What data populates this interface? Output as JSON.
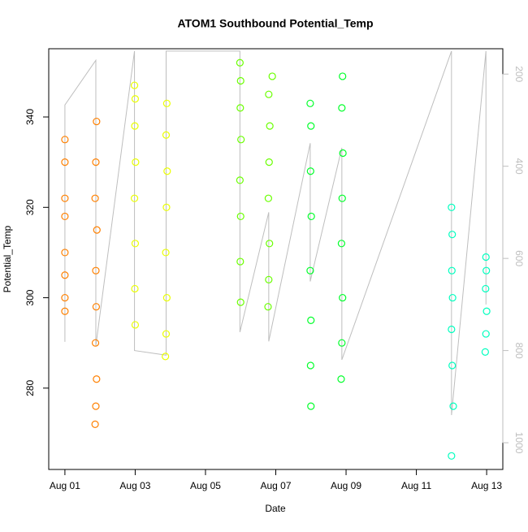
{
  "chart_data": {
    "type": "scatter",
    "title": "ATOM1 Southbound Potential_Temp",
    "x_label": "Date",
    "y_label": "Potential_Temp",
    "xlim": [
      0.54,
      13.46
    ],
    "ylim": [
      262,
      355.1
    ],
    "y2lim": [
      1058,
      145
    ],
    "xticks": [
      {
        "value": 1,
        "label": "Aug 01"
      },
      {
        "value": 3,
        "label": "Aug 03"
      },
      {
        "value": 5,
        "label": "Aug 05"
      },
      {
        "value": 7,
        "label": "Aug 07"
      },
      {
        "value": 9,
        "label": "Aug 09"
      },
      {
        "value": 11,
        "label": "Aug 11"
      },
      {
        "value": 13,
        "label": "Aug 13"
      }
    ],
    "yticks": [
      280,
      300,
      320,
      340
    ],
    "y2ticks": [
      200,
      400,
      600,
      800,
      1000
    ],
    "y2_color": "#bebebe",
    "series": [
      {
        "color": "#ff8000",
        "x": [
          1,
          1,
          1,
          1,
          1,
          1,
          1,
          1,
          1.86,
          1.88,
          1.9,
          1.87,
          1.89,
          1.88,
          1.91,
          1.86,
          1.88,
          1.9
        ],
        "values": [
          335,
          330,
          322,
          318,
          310,
          305,
          300,
          297,
          272,
          276,
          282,
          290,
          298,
          306,
          315,
          322,
          330,
          339
        ]
      },
      {
        "color": "#eaff00",
        "x": [
          2.98,
          3.0,
          2.99,
          3.01,
          2.98,
          3.0,
          2.99,
          3.0,
          3.86,
          3.88,
          3.9,
          3.87,
          3.89,
          3.91,
          3.88,
          3.9
        ],
        "values": [
          347,
          344,
          338,
          330,
          322,
          312,
          302,
          294,
          287,
          292,
          300,
          310,
          320,
          328,
          336,
          343
        ]
      },
      {
        "color": "#6aff00",
        "x": [
          5.98,
          6.0,
          5.99,
          6.01,
          5.98,
          6.0,
          5.99,
          6.0,
          6.78,
          6.8,
          6.82,
          6.79,
          6.81,
          6.83,
          6.8,
          6.9
        ],
        "values": [
          352,
          348,
          342,
          335,
          326,
          318,
          308,
          299,
          298,
          304,
          312,
          322,
          330,
          338,
          345,
          349
        ]
      },
      {
        "color": "#00ff2a",
        "x": [
          7.98,
          8.0,
          7.99,
          8.01,
          7.98,
          8.0,
          7.99,
          8.0,
          8.86,
          8.88,
          8.9,
          8.87,
          8.89,
          8.91,
          8.88,
          8.9
        ],
        "values": [
          343,
          338,
          328,
          318,
          306,
          295,
          285,
          276,
          282,
          290,
          300,
          312,
          322,
          332,
          342,
          349
        ]
      },
      {
        "color": "#00ffbf",
        "x": [
          12.0,
          12.02,
          12.01,
          12.03,
          12.0,
          12.02,
          12.05,
          12.0,
          12.96,
          12.98,
          13.0,
          12.97,
          12.99,
          12.98
        ],
        "values": [
          320,
          314,
          306,
          300,
          293,
          285,
          276,
          265,
          288,
          292,
          297,
          302,
          306,
          309
        ]
      },
      {
        "type": "line",
        "axis": "y2",
        "color": "#bebebe",
        "x": [
          1.0,
          1.0,
          1.88,
          1.88,
          2.98,
          2.98,
          3.88,
          3.88,
          5.98,
          5.98,
          6.8,
          6.8,
          7.98,
          7.98,
          8.88,
          8.88,
          12.0,
          12.0,
          12.98,
          12.98
        ],
        "values": [
          781,
          267,
          170,
          790,
          150,
          800,
          810,
          150,
          150,
          760,
          500,
          780,
          350,
          650,
          360,
          820,
          150,
          940,
          150,
          700
        ]
      }
    ]
  }
}
